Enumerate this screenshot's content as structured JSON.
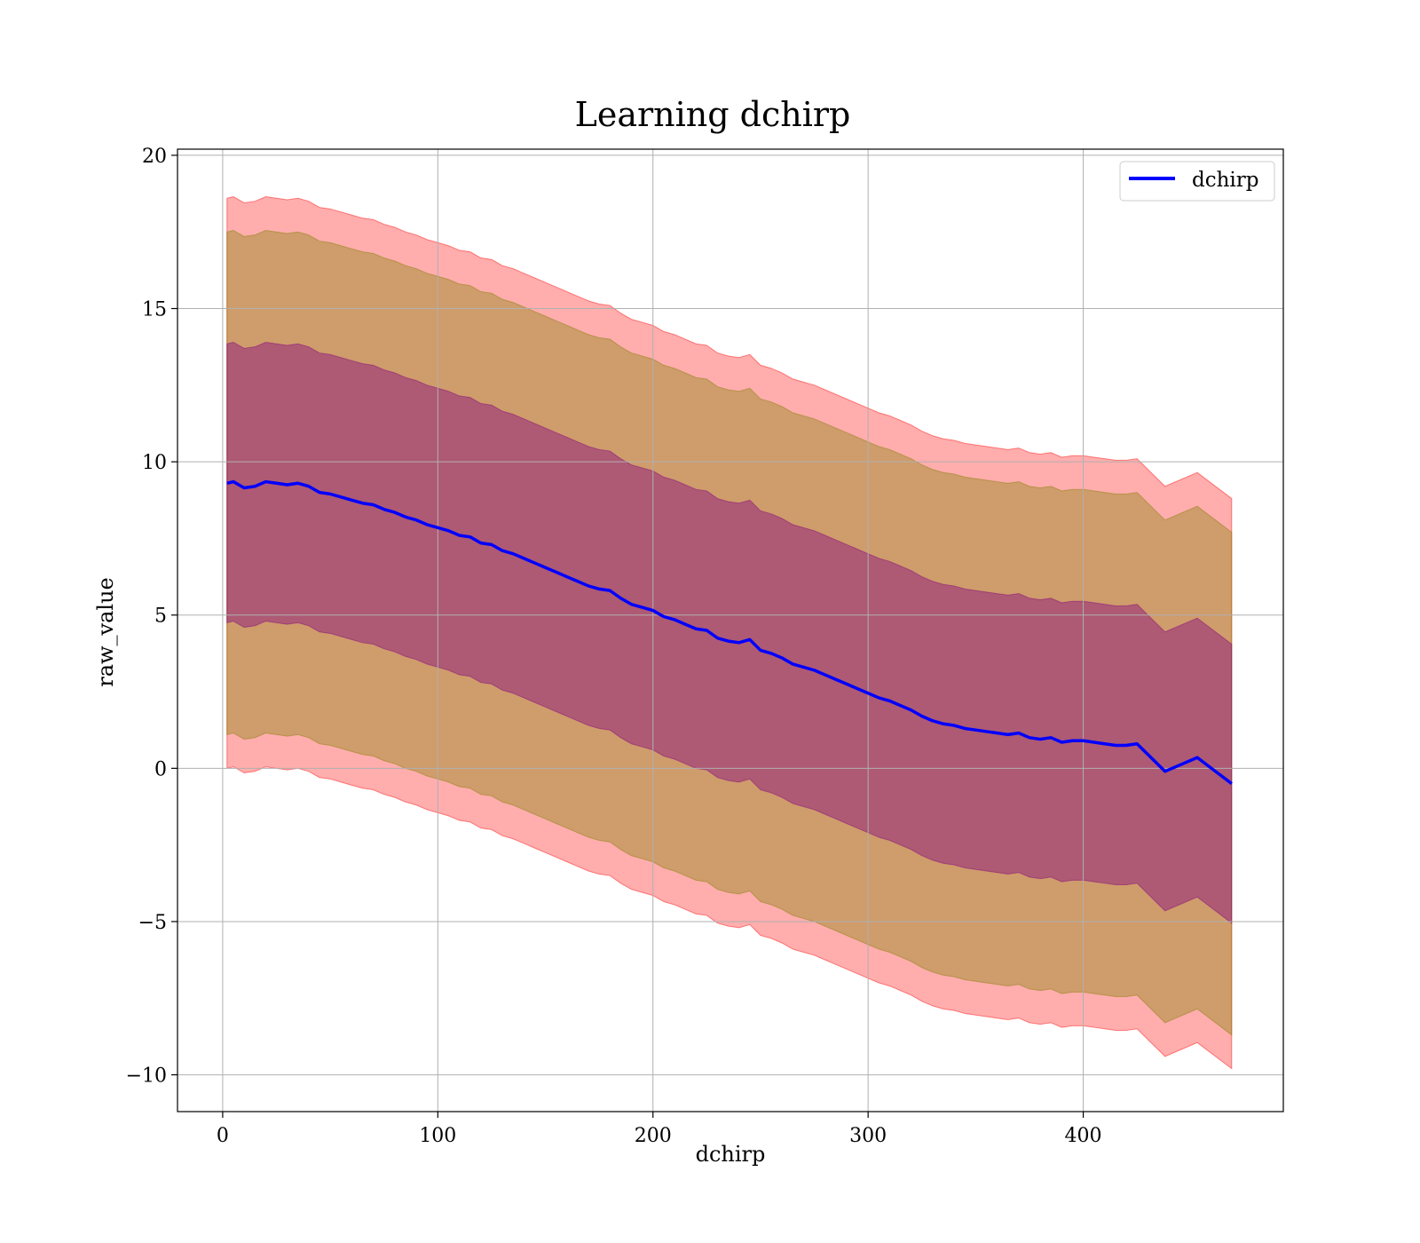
{
  "chart_data": {
    "type": "line",
    "title": "Learning dchirp",
    "xlabel": "dchirp",
    "ylabel": "raw_value",
    "xlim": [
      -21,
      493
    ],
    "ylim": [
      -11.2,
      20.2
    ],
    "xticks": [
      0,
      100,
      200,
      300,
      400
    ],
    "xtick_labels": [
      "0",
      "100",
      "200",
      "300",
      "400"
    ],
    "yticks": [
      -10,
      -5,
      0,
      5,
      10,
      15,
      20
    ],
    "ytick_labels": [
      "−10",
      "−5",
      "0",
      "5",
      "10",
      "15",
      "20"
    ],
    "grid": true,
    "legend_position": "top-right",
    "colors": {
      "mean_line": "#0000ff",
      "outer_band": "#ff0000",
      "middle_band": "#808000",
      "inner_band": "#800080",
      "grid": "#b0b0b0"
    },
    "band_offsets_description": [
      "±1 std",
      "±2 std",
      "±3 std"
    ],
    "band_half_widths": [
      4.55,
      8.2,
      9.3
    ],
    "series": [
      {
        "name": "dchirp",
        "x": [
          2,
          5,
          10,
          15,
          20,
          25,
          30,
          35,
          40,
          45,
          50,
          55,
          60,
          65,
          70,
          75,
          80,
          85,
          90,
          95,
          100,
          105,
          110,
          115,
          120,
          125,
          130,
          135,
          140,
          145,
          150,
          155,
          160,
          165,
          170,
          175,
          180,
          185,
          190,
          195,
          200,
          205,
          210,
          215,
          220,
          225,
          230,
          235,
          240,
          245,
          250,
          255,
          260,
          265,
          270,
          275,
          280,
          285,
          290,
          295,
          300,
          305,
          310,
          315,
          320,
          325,
          330,
          335,
          340,
          345,
          350,
          355,
          360,
          365,
          370,
          375,
          380,
          385,
          390,
          395,
          400,
          405,
          410,
          415,
          420,
          425,
          438,
          453,
          469
        ],
        "y": [
          9.3,
          9.35,
          9.15,
          9.2,
          9.35,
          9.3,
          9.25,
          9.3,
          9.2,
          9.0,
          8.95,
          8.85,
          8.75,
          8.65,
          8.6,
          8.45,
          8.35,
          8.2,
          8.1,
          7.95,
          7.85,
          7.75,
          7.6,
          7.55,
          7.35,
          7.3,
          7.1,
          7.0,
          6.85,
          6.7,
          6.55,
          6.4,
          6.25,
          6.1,
          5.95,
          5.85,
          5.8,
          5.55,
          5.35,
          5.25,
          5.15,
          4.95,
          4.85,
          4.7,
          4.55,
          4.5,
          4.25,
          4.15,
          4.1,
          4.2,
          3.85,
          3.75,
          3.6,
          3.4,
          3.3,
          3.2,
          3.05,
          2.9,
          2.75,
          2.6,
          2.45,
          2.3,
          2.2,
          2.05,
          1.9,
          1.7,
          1.55,
          1.45,
          1.4,
          1.3,
          1.25,
          1.2,
          1.15,
          1.1,
          1.15,
          1.0,
          0.95,
          1.0,
          0.85,
          0.9,
          0.9,
          0.85,
          0.8,
          0.75,
          0.75,
          0.8,
          -0.1,
          0.35,
          -0.5
        ]
      }
    ]
  }
}
